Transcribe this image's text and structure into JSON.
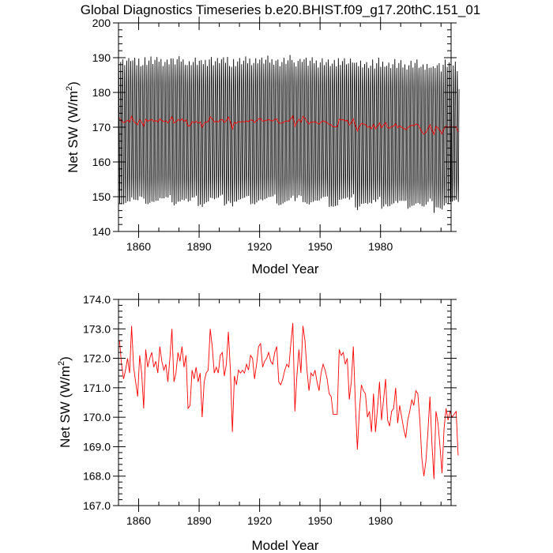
{
  "figure": {
    "title": "Global Diagnostics Timeseries b.e20.BHIST.f09_g17.20thC.151_01"
  },
  "chart_data": [
    {
      "type": "line",
      "panel": "top",
      "xlabel": "Model Year",
      "ylabel_main": "Net SW (W/m",
      "ylabel_sup": "2",
      "ylabel_close": ")",
      "xlim": [
        1850,
        2015
      ],
      "ylim": [
        140,
        200
      ],
      "xticks": [
        1860,
        1890,
        1920,
        1950,
        1980
      ],
      "xtick_labels": [
        "1860",
        "1890",
        "1920",
        "1950",
        "1980"
      ],
      "yticks": [
        140,
        150,
        160,
        170,
        180,
        190,
        200
      ],
      "ytick_labels": [
        "140",
        "150",
        "160",
        "170",
        "180",
        "190",
        "200"
      ],
      "series": [
        {
          "color": "#000000",
          "kind": "monthly",
          "seasonal_max": 189.5,
          "seasonal_min": 148.5,
          "note_range": "monthly values oscillate roughly between 146 and 192"
        },
        {
          "color": "#ff0000",
          "kind": "annual_mean"
        }
      ]
    },
    {
      "type": "line",
      "panel": "bottom",
      "xlabel": "Model Year",
      "ylabel_main": "Net SW (W/m",
      "ylabel_sup": "2",
      "ylabel_close": ")",
      "xlim": [
        1850,
        2015
      ],
      "ylim": [
        167,
        174
      ],
      "xticks": [
        1860,
        1890,
        1920,
        1950,
        1980
      ],
      "xtick_labels": [
        "1860",
        "1890",
        "1920",
        "1950",
        "1980"
      ],
      "yticks": [
        167,
        168,
        169,
        170,
        171,
        172,
        173,
        174
      ],
      "ytick_labels": [
        "167.0",
        "168.0",
        "169.0",
        "170.0",
        "171.0",
        "172.0",
        "173.0",
        "174.0"
      ],
      "series": [
        {
          "color": "#ff0000",
          "kind": "annual_mean",
          "x_start": 1850,
          "values": [
            172.6,
            171.8,
            171.3,
            171.6,
            172.0,
            171.5,
            173.1,
            171.7,
            171.2,
            170.7,
            172.1,
            171.5,
            170.3,
            172.3,
            171.7,
            172.0,
            172.2,
            171.7,
            171.9,
            171.5,
            172.4,
            171.9,
            171.6,
            171.8,
            171.2,
            172.0,
            173.0,
            171.2,
            171.5,
            172.2,
            171.9,
            172.4,
            171.7,
            172.1,
            170.3,
            170.4,
            171.6,
            171.3,
            171.7,
            171.2,
            171.5,
            170.0,
            171.2,
            171.5,
            171.6,
            173.0,
            172.4,
            171.5,
            171.7,
            171.5,
            172.1,
            172.2,
            171.4,
            171.8,
            172.9,
            171.6,
            169.5,
            171.4,
            171.1,
            171.6,
            171.5,
            171.6,
            171.5,
            171.8,
            171.6,
            172.1,
            172.0,
            171.3,
            171.8,
            172.4,
            172.5,
            171.7,
            171.9,
            172.0,
            172.2,
            171.9,
            171.8,
            172.2,
            172.4,
            171.2,
            171.1,
            171.3,
            171.6,
            171.8,
            171.7,
            172.5,
            173.2,
            170.2,
            171.4,
            172.3,
            171.5,
            173.1,
            172.6,
            171.6,
            170.9,
            171.5,
            171.4,
            171.6,
            171.2,
            170.9,
            171.5,
            171.8,
            171.6,
            171.3,
            170.8,
            170.7,
            170.1,
            170.1,
            170.1,
            172.3,
            172.1,
            172.2,
            171.8,
            172.0,
            170.6,
            171.2,
            172.4,
            170.5,
            168.9,
            170.2,
            171.1,
            170.9,
            170.8,
            170.0,
            170.2,
            169.5,
            170.8,
            169.5,
            170.3,
            171.2,
            169.9,
            170.6,
            171.3,
            169.9,
            169.7,
            170.2,
            170.3,
            171.0,
            169.8,
            170.4,
            170.0,
            169.6,
            169.3,
            169.9,
            170.2,
            170.6,
            170.4,
            170.9,
            170.8,
            169.9,
            168.6,
            168.0,
            168.5,
            169.5,
            170.7,
            169.1,
            167.9,
            170.2,
            169.8,
            169.0,
            168.1,
            169.6,
            170.3,
            169.9,
            170.2,
            170.0,
            170.1,
            170.2,
            168.7
          ]
        }
      ]
    }
  ]
}
